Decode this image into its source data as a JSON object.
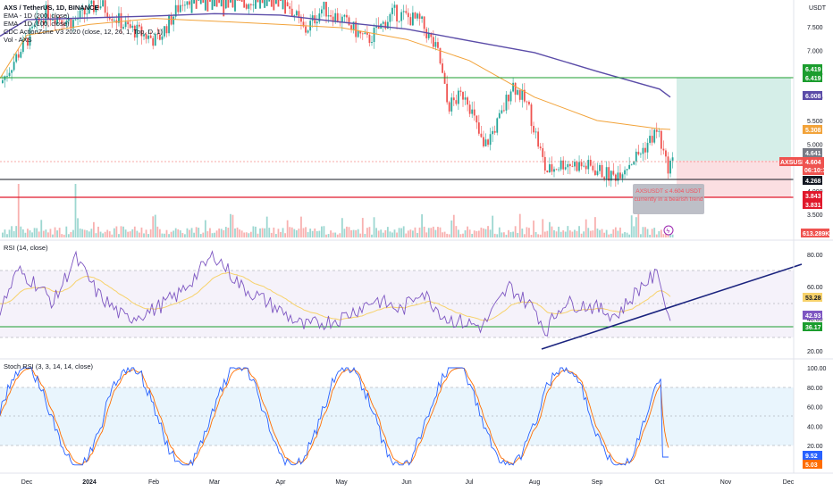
{
  "legend": {
    "symbol": "AXS / TetherUS, 1D, BINANCE",
    "ema200": "EMA - 1D (200, close)",
    "ema100": "EMA - 1D (100, close)",
    "cdc": "CDC ActionZone V3 2020 (close, 12, 26, 1, Top, D, 1)",
    "vol": "Vol - AXS"
  },
  "price_axis": {
    "unit": "USDT",
    "ticks": [
      "7.500",
      "7.000",
      "6.500",
      "6.000",
      "5.500",
      "5.000",
      "4.500",
      "4.000",
      "3.500"
    ]
  },
  "price_tags": {
    "upper_line": "6.419",
    "upper_line_2": "6.419",
    "ema200": "6.008",
    "ema100": "5.308",
    "high": "4.641",
    "current_label": "AXSUSDT",
    "current": "4.604",
    "countdown": "06:10:11",
    "support": "4.268",
    "lower_line": "3.843",
    "lower_line_2": "3.831",
    "volume": "613.289K"
  },
  "tooltip": {
    "line1": "AXSUSDT ≤ 4.604 USDT",
    "line2": "currently in a bearish trend"
  },
  "rsi": {
    "title": "RSI (14, close)",
    "ticks": [
      "80.00",
      "60.00",
      "40.00",
      "20.00"
    ],
    "value": "53.28",
    "value2": "42.93",
    "value3": "36.17"
  },
  "stoch": {
    "title": "Stoch RSI (3, 3, 14, 14, close)",
    "ticks": [
      "100.00",
      "80.00",
      "60.00",
      "40.00",
      "20.00"
    ],
    "k": "9.52",
    "d": "5.03"
  },
  "time_axis": [
    "Dec",
    "2024",
    "Feb",
    "Mar",
    "Apr",
    "May",
    "Jun",
    "Jul",
    "Aug",
    "Sep",
    "Oct",
    "Nov",
    "Dec"
  ],
  "colors": {
    "green_line": "#1b9d2e",
    "red_line": "#e0192c",
    "ema200": "#5b4ca8",
    "ema100": "#f2a33a",
    "up": "#26a69a",
    "down": "#ef5350",
    "rsi": "#7e57c2",
    "trendline": "#1a237e",
    "stoch_k": "#2962ff",
    "stoch_d": "#ff6d00"
  },
  "chart_data": {
    "type": "line",
    "title": "AXS / TetherUS, 1D, BINANCE",
    "series": [
      {
        "name": "EMA - 1D (200, close)",
        "values": [
          7.65,
          7.69,
          7.73,
          7.78,
          7.75,
          7.6,
          7.45,
          7.2,
          6.95,
          6.55,
          6.17,
          6.0
        ]
      },
      {
        "name": "EMA - 1D (100, close)",
        "values": [
          7.32,
          7.55,
          7.68,
          7.62,
          7.55,
          7.48,
          7.23,
          6.78,
          6.0,
          5.5,
          5.32,
          5.31
        ]
      }
    ],
    "x": [
      "Dec",
      "2024",
      "Feb",
      "Mar",
      "Apr",
      "May",
      "Jun",
      "Jul",
      "Aug",
      "Sep",
      "Oct",
      "Nov"
    ],
    "levels": {
      "upper": 6.419,
      "support": 4.268,
      "lower": 3.843
    },
    "ylim": [
      3.4,
      7.9
    ]
  }
}
